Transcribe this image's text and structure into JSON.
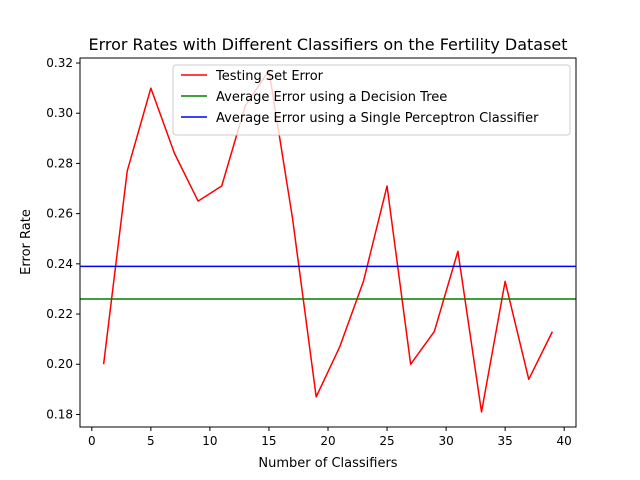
{
  "chart_data": {
    "type": "line",
    "title": "Error Rates with Different Classifiers on the Fertility Dataset",
    "xlabel": "Number of Classifiers",
    "ylabel": "Error Rate",
    "xlim": [
      -1,
      41
    ],
    "ylim": [
      0.175,
      0.322
    ],
    "xticks": [
      0,
      5,
      10,
      15,
      20,
      25,
      30,
      35,
      40
    ],
    "yticks": [
      0.18,
      0.2,
      0.22,
      0.24,
      0.26,
      0.28,
      0.3,
      0.32
    ],
    "grid": false,
    "legend_position": "top-right",
    "series": [
      {
        "name": "Testing Set Error",
        "color": "#ff0000",
        "kind": "line",
        "x": [
          1,
          3,
          5,
          7,
          9,
          11,
          13,
          15,
          17,
          19,
          21,
          23,
          25,
          27,
          29,
          31,
          33,
          35,
          37,
          39
        ],
        "y": [
          0.2,
          0.277,
          0.31,
          0.284,
          0.265,
          0.271,
          0.303,
          0.317,
          0.258,
          0.187,
          0.207,
          0.233,
          0.271,
          0.2,
          0.213,
          0.245,
          0.181,
          0.233,
          0.194,
          0.213
        ]
      },
      {
        "name": "Average Error using a Decision Tree",
        "color": "#008000",
        "kind": "hline",
        "y": 0.226
      },
      {
        "name": "Average Error using a Single Perceptron Classifier",
        "color": "#0000ff",
        "kind": "hline",
        "y": 0.239
      }
    ]
  }
}
